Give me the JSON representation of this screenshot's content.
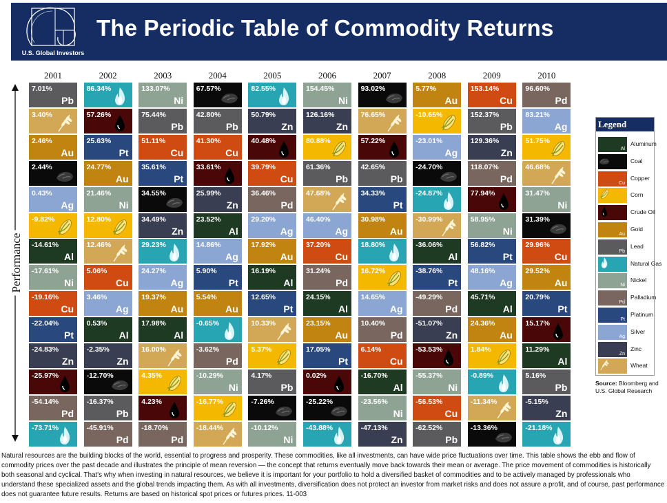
{
  "header": {
    "title": "The Periodic Table of Commodity Returns",
    "logo_text": "U.S. Global Investors",
    "background": "#162d63"
  },
  "axis_label": "Performance",
  "legend": {
    "title": "Legend",
    "items": [
      {
        "name": "Aluminum",
        "symbol": "Al",
        "color": "#1f3a22"
      },
      {
        "name": "Coal",
        "symbol": "",
        "color": "#0a0a0a"
      },
      {
        "name": "Copper",
        "symbol": "Cu",
        "color": "#cf4b12"
      },
      {
        "name": "Corn",
        "symbol": "",
        "color": "#f5b800"
      },
      {
        "name": "Crude Oil",
        "symbol": "",
        "color": "#4a0708"
      },
      {
        "name": "Gold",
        "symbol": "Au",
        "color": "#c18410"
      },
      {
        "name": "Lead",
        "symbol": "Pb",
        "color": "#5b5b5e"
      },
      {
        "name": "Natural Gas",
        "symbol": "",
        "color": "#27a5b2"
      },
      {
        "name": "Nickel",
        "symbol": "Ni",
        "color": "#8ea393"
      },
      {
        "name": "Palladium",
        "symbol": "Pd",
        "color": "#79665f"
      },
      {
        "name": "Platinum",
        "symbol": "Pt",
        "color": "#29487e"
      },
      {
        "name": "Silver",
        "symbol": "Ag",
        "color": "#8ba6d2"
      },
      {
        "name": "Zinc",
        "symbol": "Zn",
        "color": "#3a3e52"
      },
      {
        "name": "Wheat",
        "symbol": "",
        "color": "#d2a857"
      }
    ]
  },
  "source": {
    "label": "Source:",
    "text": "Bloomberg and U.S. Global Research"
  },
  "footer": "Natural resources are the building blocks of the world, essential to progress and prosperity. These commodities, like all investments, can have wide price fluctuations over time. This table shows the ebb and flow of commodity prices over the past decade and illustrates the principle of mean reversion — the concept that returns eventually move back towards their mean or average. The price movement of commodities is historically both seasonal and cyclical. That's why when investing in natural resources, we believe it is important for your portfolio to hold a diversified basket of commodities and to be actively managed by professionals who understand these specialized assets and the global trends impacting them. As with all investments, diversification does not protect an investor from market risks and does not assure a profit, and of course, past performance does not guarantee future results. Returns are based on historical spot prices or futures prices. 11-003",
  "chart_data": {
    "type": "table",
    "title": "The Periodic Table of Commodity Returns",
    "ylabel": "Performance",
    "columns": [
      "2001",
      "2002",
      "2003",
      "2004",
      "2005",
      "2006",
      "2007",
      "2008",
      "2009",
      "2010"
    ],
    "colors": {
      "Aluminum": "#1f3a22",
      "Coal": "#0a0a0a",
      "Copper": "#cf4b12",
      "Corn": "#f5b800",
      "Crude Oil": "#4a0708",
      "Gold": "#c18410",
      "Lead": "#5b5b5e",
      "Natural Gas": "#27a5b2",
      "Nickel": "#8ea393",
      "Palladium": "#79665f",
      "Platinum": "#29487e",
      "Silver": "#8ba6d2",
      "Zinc": "#3a3e52",
      "Wheat": "#d2a857"
    },
    "symbols": {
      "Aluminum": "Al",
      "Copper": "Cu",
      "Gold": "Au",
      "Lead": "Pb",
      "Nickel": "Ni",
      "Palladium": "Pd",
      "Platinum": "Pt",
      "Silver": "Ag",
      "Zinc": "Zn"
    },
    "icons": {
      "Coal": "coal-icon",
      "Corn": "corn-icon",
      "Crude Oil": "oil-drop-icon",
      "Natural Gas": "flame-icon",
      "Wheat": "wheat-icon"
    },
    "data": [
      [
        {
          "c": "Lead",
          "v": "7.01%"
        },
        {
          "c": "Wheat",
          "v": "3.40%"
        },
        {
          "c": "Gold",
          "v": "2.46%"
        },
        {
          "c": "Coal",
          "v": "2.44%"
        },
        {
          "c": "Silver",
          "v": "0.43%"
        },
        {
          "c": "Corn",
          "v": "-9.82%"
        },
        {
          "c": "Aluminum",
          "v": "-14.61%"
        },
        {
          "c": "Nickel",
          "v": "-17.61%"
        },
        {
          "c": "Copper",
          "v": "-19.16%"
        },
        {
          "c": "Platinum",
          "v": "-22.04%"
        },
        {
          "c": "Zinc",
          "v": "-24.83%"
        },
        {
          "c": "Crude Oil",
          "v": "-25.97%"
        },
        {
          "c": "Palladium",
          "v": "-54.14%"
        },
        {
          "c": "Natural Gas",
          "v": "-73.71%"
        }
      ],
      [
        {
          "c": "Natural Gas",
          "v": "86.34%"
        },
        {
          "c": "Crude Oil",
          "v": "57.26%"
        },
        {
          "c": "Platinum",
          "v": "25.63%"
        },
        {
          "c": "Gold",
          "v": "24.77%"
        },
        {
          "c": "Nickel",
          "v": "21.46%"
        },
        {
          "c": "Corn",
          "v": "12.80%"
        },
        {
          "c": "Wheat",
          "v": "12.46%"
        },
        {
          "c": "Copper",
          "v": "5.06%"
        },
        {
          "c": "Silver",
          "v": "3.46%"
        },
        {
          "c": "Aluminum",
          "v": "0.53%"
        },
        {
          "c": "Zinc",
          "v": "-2.35%"
        },
        {
          "c": "Coal",
          "v": "-12.70%"
        },
        {
          "c": "Lead",
          "v": "-16.37%"
        },
        {
          "c": "Palladium",
          "v": "-45.91%"
        }
      ],
      [
        {
          "c": "Nickel",
          "v": "133.07%"
        },
        {
          "c": "Lead",
          "v": "75.44%"
        },
        {
          "c": "Copper",
          "v": "51.11%"
        },
        {
          "c": "Platinum",
          "v": "35.61%"
        },
        {
          "c": "Coal",
          "v": "34.55%"
        },
        {
          "c": "Zinc",
          "v": "34.49%"
        },
        {
          "c": "Natural Gas",
          "v": "29.23%"
        },
        {
          "c": "Silver",
          "v": "24.27%"
        },
        {
          "c": "Gold",
          "v": "19.37%"
        },
        {
          "c": "Aluminum",
          "v": "17.98%"
        },
        {
          "c": "Wheat",
          "v": "16.00%"
        },
        {
          "c": "Corn",
          "v": "4.35%"
        },
        {
          "c": "Crude Oil",
          "v": "4.23%"
        },
        {
          "c": "Palladium",
          "v": "-18.70%"
        }
      ],
      [
        {
          "c": "Coal",
          "v": "67.57%"
        },
        {
          "c": "Lead",
          "v": "42.80%"
        },
        {
          "c": "Copper",
          "v": "41.30%"
        },
        {
          "c": "Crude Oil",
          "v": "33.61%"
        },
        {
          "c": "Zinc",
          "v": "25.99%"
        },
        {
          "c": "Aluminum",
          "v": "23.52%"
        },
        {
          "c": "Silver",
          "v": "14.86%"
        },
        {
          "c": "Platinum",
          "v": "5.90%"
        },
        {
          "c": "Gold",
          "v": "5.54%"
        },
        {
          "c": "Natural Gas",
          "v": "-0.65%"
        },
        {
          "c": "Palladium",
          "v": "-3.62%"
        },
        {
          "c": "Nickel",
          "v": "-10.29%"
        },
        {
          "c": "Corn",
          "v": "-16.77%"
        },
        {
          "c": "Wheat",
          "v": "-18.44%"
        }
      ],
      [
        {
          "c": "Natural Gas",
          "v": "82.55%"
        },
        {
          "c": "Zinc",
          "v": "50.79%"
        },
        {
          "c": "Crude Oil",
          "v": "40.48%"
        },
        {
          "c": "Copper",
          "v": "39.79%"
        },
        {
          "c": "Palladium",
          "v": "36.46%"
        },
        {
          "c": "Silver",
          "v": "29.20%"
        },
        {
          "c": "Gold",
          "v": "17.92%"
        },
        {
          "c": "Aluminum",
          "v": "16.19%"
        },
        {
          "c": "Platinum",
          "v": "12.65%"
        },
        {
          "c": "Wheat",
          "v": "10.33%"
        },
        {
          "c": "Corn",
          "v": "5.37%"
        },
        {
          "c": "Lead",
          "v": "4.17%"
        },
        {
          "c": "Coal",
          "v": "-7.26%"
        },
        {
          "c": "Nickel",
          "v": "-10.12%"
        }
      ],
      [
        {
          "c": "Nickel",
          "v": "154.45%"
        },
        {
          "c": "Zinc",
          "v": "126.16%"
        },
        {
          "c": "Corn",
          "v": "80.88%"
        },
        {
          "c": "Lead",
          "v": "61.36%"
        },
        {
          "c": "Wheat",
          "v": "47.68%"
        },
        {
          "c": "Silver",
          "v": "46.40%"
        },
        {
          "c": "Copper",
          "v": "37.20%"
        },
        {
          "c": "Palladium",
          "v": "31.24%"
        },
        {
          "c": "Aluminum",
          "v": "24.15%"
        },
        {
          "c": "Gold",
          "v": "23.15%"
        },
        {
          "c": "Platinum",
          "v": "17.05%"
        },
        {
          "c": "Crude Oil",
          "v": "0.02%"
        },
        {
          "c": "Coal",
          "v": "-25.22%"
        },
        {
          "c": "Natural Gas",
          "v": "-43.88%"
        }
      ],
      [
        {
          "c": "Coal",
          "v": "93.02%"
        },
        {
          "c": "Wheat",
          "v": "76.65%"
        },
        {
          "c": "Crude Oil",
          "v": "57.22%"
        },
        {
          "c": "Lead",
          "v": "42.65%"
        },
        {
          "c": "Platinum",
          "v": "34.33%"
        },
        {
          "c": "Gold",
          "v": "30.98%"
        },
        {
          "c": "Natural Gas",
          "v": "18.80%"
        },
        {
          "c": "Corn",
          "v": "16.72%"
        },
        {
          "c": "Silver",
          "v": "14.65%"
        },
        {
          "c": "Palladium",
          "v": "10.40%"
        },
        {
          "c": "Copper",
          "v": "6.14%"
        },
        {
          "c": "Aluminum",
          "v": "-16.70%"
        },
        {
          "c": "Nickel",
          "v": "-23.56%"
        },
        {
          "c": "Zinc",
          "v": "-47.13%"
        }
      ],
      [
        {
          "c": "Gold",
          "v": "5.77%"
        },
        {
          "c": "Corn",
          "v": "-10.65%"
        },
        {
          "c": "Silver",
          "v": "-23.01%"
        },
        {
          "c": "Coal",
          "v": "-24.70%"
        },
        {
          "c": "Natural Gas",
          "v": "-24.87%"
        },
        {
          "c": "Wheat",
          "v": "-30.99%"
        },
        {
          "c": "Aluminum",
          "v": "-36.06%"
        },
        {
          "c": "Platinum",
          "v": "-38.76%"
        },
        {
          "c": "Palladium",
          "v": "-49.29%"
        },
        {
          "c": "Zinc",
          "v": "-51.07%"
        },
        {
          "c": "Crude Oil",
          "v": "-53.53%"
        },
        {
          "c": "Nickel",
          "v": "-55.37%"
        },
        {
          "c": "Copper",
          "v": "-56.53%"
        },
        {
          "c": "Lead",
          "v": "-62.52%"
        }
      ],
      [
        {
          "c": "Copper",
          "v": "153.14%"
        },
        {
          "c": "Lead",
          "v": "152.37%"
        },
        {
          "c": "Zinc",
          "v": "129.36%"
        },
        {
          "c": "Palladium",
          "v": "118.07%"
        },
        {
          "c": "Crude Oil",
          "v": "77.94%"
        },
        {
          "c": "Nickel",
          "v": "58.95%"
        },
        {
          "c": "Platinum",
          "v": "56.82%"
        },
        {
          "c": "Silver",
          "v": "48.16%"
        },
        {
          "c": "Aluminum",
          "v": "45.71%"
        },
        {
          "c": "Gold",
          "v": "24.36%"
        },
        {
          "c": "Corn",
          "v": "1.84%"
        },
        {
          "c": "Natural Gas",
          "v": "-0.89%"
        },
        {
          "c": "Wheat",
          "v": "-11.34%"
        },
        {
          "c": "Coal",
          "v": "-13.36%"
        }
      ],
      [
        {
          "c": "Palladium",
          "v": "96.60%"
        },
        {
          "c": "Silver",
          "v": "83.21%"
        },
        {
          "c": "Corn",
          "v": "51.75%"
        },
        {
          "c": "Wheat",
          "v": "46.68%"
        },
        {
          "c": "Nickel",
          "v": "31.47%"
        },
        {
          "c": "Coal",
          "v": "31.39%"
        },
        {
          "c": "Copper",
          "v": "29.96%"
        },
        {
          "c": "Gold",
          "v": "29.52%"
        },
        {
          "c": "Platinum",
          "v": "20.79%"
        },
        {
          "c": "Crude Oil",
          "v": "15.17%"
        },
        {
          "c": "Aluminum",
          "v": "11.29%"
        },
        {
          "c": "Lead",
          "v": "5.16%"
        },
        {
          "c": "Zinc",
          "v": "-5.15%"
        },
        {
          "c": "Natural Gas",
          "v": "-21.18%"
        }
      ]
    ]
  }
}
